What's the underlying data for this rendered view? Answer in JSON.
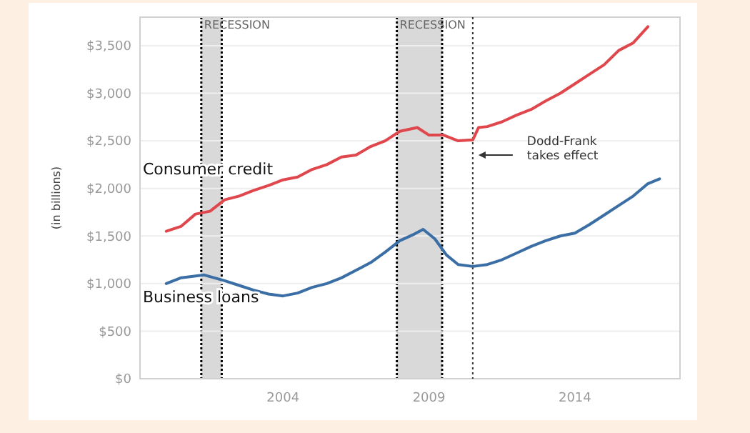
{
  "chart_data": {
    "type": "line",
    "ylabel": "(in billions)",
    "xlim": [
      1999.1,
      2017.6
    ],
    "xticks": [
      2004,
      2009,
      2014
    ],
    "ylim": [
      0,
      3800
    ],
    "yticks": [
      {
        "value": 0,
        "label": "$0"
      },
      {
        "value": 500,
        "label": "$500"
      },
      {
        "value": 1000,
        "label": "$1,000"
      },
      {
        "value": 1500,
        "label": "$1,500"
      },
      {
        "value": 2000,
        "label": "$2,000"
      },
      {
        "value": 2500,
        "label": "$2,500"
      },
      {
        "value": 3000,
        "label": "$3,000"
      },
      {
        "value": 3500,
        "label": "$3,500"
      }
    ],
    "grid": "y",
    "line_style": "solid",
    "marker": "none",
    "series": [
      {
        "name": "Consumer credit",
        "color": "#e0474c",
        "x": [
          2000,
          2000.5,
          2001,
          2001.5,
          2002,
          2002.5,
          2003,
          2003.5,
          2004,
          2004.5,
          2005,
          2005.5,
          2006,
          2006.5,
          2007,
          2007.5,
          2008,
          2008.6,
          2009,
          2009.5,
          2010,
          2010.5,
          2010.7,
          2011,
          2011.5,
          2012,
          2012.5,
          2013,
          2013.5,
          2014,
          2014.5,
          2015,
          2015.5,
          2016,
          2016.5
        ],
        "values": [
          1550,
          1600,
          1730,
          1760,
          1880,
          1920,
          1980,
          2030,
          2090,
          2120,
          2200,
          2250,
          2330,
          2350,
          2440,
          2500,
          2600,
          2640,
          2560,
          2560,
          2500,
          2510,
          2640,
          2650,
          2700,
          2770,
          2830,
          2920,
          3000,
          3100,
          3200,
          3300,
          3450,
          3530,
          3700
        ]
      },
      {
        "name": "Business loans",
        "color": "#3a6ea5",
        "x": [
          2000,
          2000.5,
          2001.3,
          2002,
          2002.5,
          2003,
          2003.5,
          2004,
          2004.5,
          2005,
          2005.5,
          2006,
          2006.5,
          2007,
          2007.5,
          2008,
          2008.5,
          2008.8,
          2009.2,
          2009.6,
          2010,
          2010.5,
          2011,
          2011.5,
          2012,
          2012.5,
          2013,
          2013.5,
          2014,
          2014.5,
          2015,
          2015.5,
          2016,
          2016.5,
          2016.9
        ],
        "values": [
          1000,
          1060,
          1090,
          1030,
          980,
          930,
          890,
          870,
          900,
          960,
          1000,
          1060,
          1140,
          1220,
          1330,
          1450,
          1520,
          1570,
          1470,
          1300,
          1200,
          1180,
          1200,
          1250,
          1320,
          1390,
          1450,
          1500,
          1530,
          1620,
          1720,
          1820,
          1920,
          2050,
          2100
        ]
      }
    ],
    "bands": [
      {
        "axis": "x",
        "from": 2001.2,
        "to": 2001.9,
        "label": "RECESSION",
        "color": "#d9d9d9"
      },
      {
        "axis": "x",
        "from": 2007.9,
        "to": 2009.45,
        "label": "RECESSION",
        "color": "#d9d9d9"
      }
    ],
    "ref_lines": [
      {
        "axis": "x",
        "value": 2010.5,
        "label": "Dodd-Frank takes effect",
        "line_style": "dotted"
      }
    ]
  }
}
